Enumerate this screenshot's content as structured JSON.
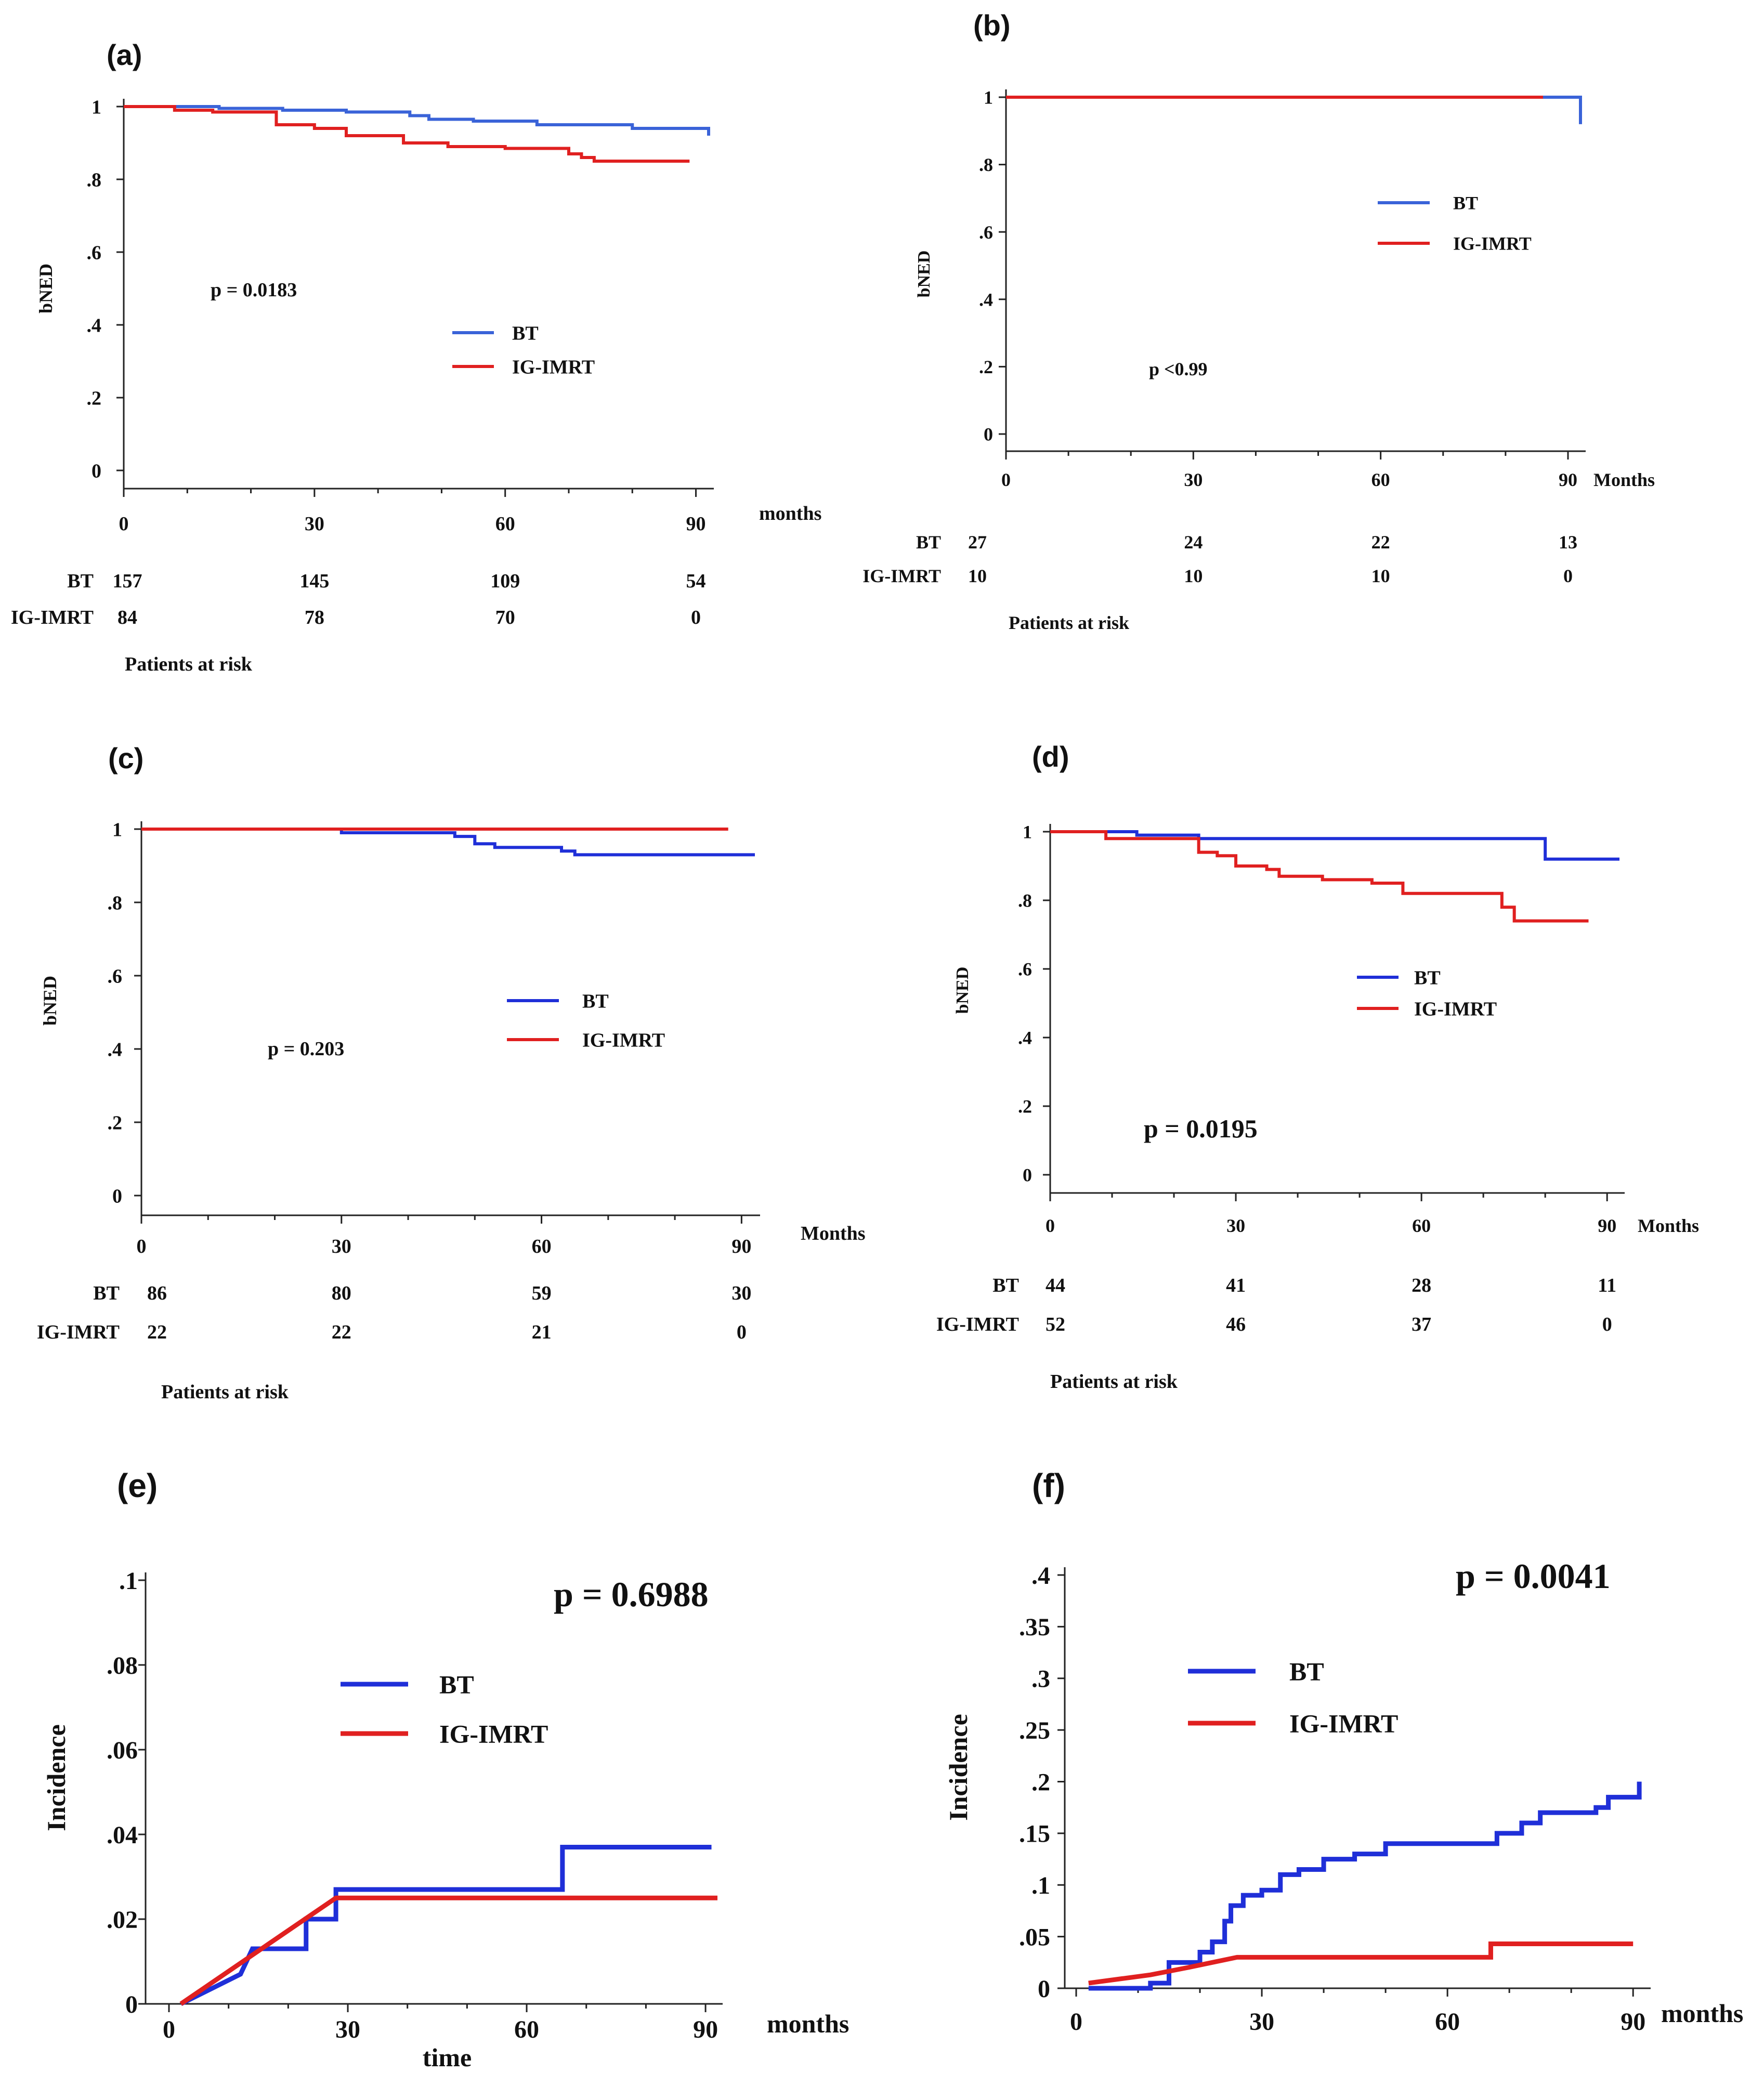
{
  "colors": {
    "bt": "#3a63d8",
    "imrt": "#e02020",
    "bt_dark": "#1f2fd8",
    "axis": "#222222"
  },
  "chart_data": [
    {
      "panel": "(a)",
      "type": "line",
      "ylabel": "bNED",
      "xunit": "months",
      "ylim": [
        0,
        1
      ],
      "xlim": [
        0,
        92
      ],
      "yticks": [
        "0",
        ".2",
        ".4",
        ".6",
        ".8",
        "1"
      ],
      "xticks": [
        "0",
        "30",
        "60",
        "90"
      ],
      "pvalue": "p = 0.0183",
      "legend": [
        "BT",
        "IG-IMRT"
      ],
      "series": [
        {
          "name": "BT",
          "x": [
            0,
            15,
            25,
            35,
            45,
            48,
            55,
            65,
            80,
            91,
            92
          ],
          "y": [
            1,
            0.995,
            0.99,
            0.985,
            0.975,
            0.965,
            0.96,
            0.95,
            0.94,
            0.94,
            0.92
          ]
        },
        {
          "name": "IG-IMRT",
          "x": [
            0,
            8,
            14,
            24,
            30,
            35,
            44,
            51,
            60,
            70,
            72,
            74,
            89
          ],
          "y": [
            1,
            0.99,
            0.985,
            0.95,
            0.94,
            0.92,
            0.9,
            0.89,
            0.885,
            0.87,
            0.86,
            0.85,
            0.85
          ]
        }
      ],
      "at_risk_label": "Patients at risk",
      "at_risk_rows": [
        {
          "label": "BT",
          "values": [
            "157",
            "145",
            "109",
            "54"
          ]
        },
        {
          "label": "IG-IMRT",
          "values": [
            "84",
            "78",
            "70",
            "0"
          ]
        }
      ]
    },
    {
      "panel": "(b)",
      "type": "line",
      "ylabel": "bNED",
      "xunit": "Months",
      "ylim": [
        0,
        1
      ],
      "xlim": [
        0,
        92
      ],
      "yticks": [
        "0",
        ".2",
        ".4",
        ".6",
        ".8",
        "1"
      ],
      "xticks": [
        "0",
        "30",
        "60",
        "90"
      ],
      "pvalue": "p <0.99",
      "legend": [
        "BT",
        "IG-IMRT"
      ],
      "series": [
        {
          "name": "BT",
          "x": [
            0,
            92,
            92
          ],
          "y": [
            1,
            1,
            0.92
          ]
        },
        {
          "name": "IG-IMRT",
          "x": [
            0,
            86
          ],
          "y": [
            1,
            1
          ]
        }
      ],
      "at_risk_label": "Patients at risk",
      "at_risk_rows": [
        {
          "label": "BT",
          "values": [
            "27",
            "24",
            "22",
            "13"
          ]
        },
        {
          "label": "IG-IMRT",
          "values": [
            "10",
            "10",
            "10",
            "0"
          ]
        }
      ]
    },
    {
      "panel": "(c)",
      "type": "line",
      "ylabel": "bNED",
      "xunit": "Months",
      "ylim": [
        0,
        1
      ],
      "xlim": [
        0,
        92
      ],
      "yticks": [
        "0",
        ".2",
        ".4",
        ".6",
        ".8",
        "1"
      ],
      "xticks": [
        "0",
        "30",
        "60",
        "90"
      ],
      "pvalue": "p = 0.203",
      "legend": [
        "BT",
        "IG-IMRT"
      ],
      "series": [
        {
          "name": "BT",
          "x": [
            0,
            30,
            47,
            50,
            53,
            63,
            65,
            92
          ],
          "y": [
            1,
            0.99,
            0.98,
            0.96,
            0.95,
            0.94,
            0.93,
            0.93
          ]
        },
        {
          "name": "IG-IMRT",
          "x": [
            0,
            88
          ],
          "y": [
            1,
            1
          ]
        }
      ],
      "at_risk_label": "Patients at risk",
      "at_risk_rows": [
        {
          "label": "BT",
          "values": [
            "86",
            "80",
            "59",
            "30"
          ]
        },
        {
          "label": "IG-IMRT",
          "values": [
            "22",
            "22",
            "21",
            "0"
          ]
        }
      ]
    },
    {
      "panel": "(d)",
      "type": "line",
      "ylabel": "bNED",
      "xunit": "Months",
      "ylim": [
        0,
        1
      ],
      "xlim": [
        0,
        92
      ],
      "yticks": [
        "0",
        ".2",
        ".4",
        ".6",
        ".8",
        "1"
      ],
      "xticks": [
        "0",
        "30",
        "60",
        "90"
      ],
      "pvalue": "p = 0.0195",
      "legend": [
        "BT",
        "IG-IMRT"
      ],
      "series": [
        {
          "name": "BT",
          "x": [
            0,
            14,
            24,
            80,
            92
          ],
          "y": [
            1,
            0.99,
            0.98,
            0.92,
            0.92
          ]
        },
        {
          "name": "IG-IMRT",
          "x": [
            0,
            9,
            24,
            27,
            30,
            35,
            37,
            44,
            52,
            57,
            73,
            75,
            87
          ],
          "y": [
            1,
            0.98,
            0.94,
            0.93,
            0.9,
            0.89,
            0.87,
            0.86,
            0.85,
            0.82,
            0.78,
            0.74,
            0.74
          ]
        }
      ],
      "at_risk_label": "Patients at risk",
      "at_risk_rows": [
        {
          "label": "BT",
          "values": [
            "44",
            "41",
            "28",
            "11"
          ]
        },
        {
          "label": "IG-IMRT",
          "values": [
            "52",
            "46",
            "37",
            "0"
          ]
        }
      ]
    },
    {
      "panel": "(e)",
      "type": "line",
      "ylabel": "Incidence",
      "xlabel": "time",
      "xunit": "months",
      "ylim": [
        0,
        0.1
      ],
      "xlim": [
        0,
        92
      ],
      "yticks": [
        "0",
        ".02",
        ".04",
        ".06",
        ".08",
        ".1"
      ],
      "xticks": [
        "0",
        "30",
        "60",
        "90"
      ],
      "pvalue": "p = 0.6988",
      "legend": [
        "BT",
        "IG-IMRT"
      ],
      "series": [
        {
          "name": "BT",
          "x": [
            2,
            12,
            14,
            22,
            23,
            26,
            28,
            64,
            66,
            91
          ],
          "y": [
            0,
            0.007,
            0.013,
            0.013,
            0.02,
            0.02,
            0.027,
            0.027,
            0.037,
            0.037
          ]
        },
        {
          "name": "IG-IMRT",
          "x": [
            2,
            28,
            92
          ],
          "y": [
            0,
            0.025,
            0.025
          ]
        }
      ]
    },
    {
      "panel": "(f)",
      "type": "line",
      "ylabel": "Incidence",
      "xunit": "months",
      "ylim": [
        0,
        0.4
      ],
      "xlim": [
        0,
        92
      ],
      "yticks": [
        "0",
        ".05",
        ".1",
        ".15",
        ".2",
        ".25",
        ".3",
        ".35",
        ".4"
      ],
      "xticks": [
        "0",
        "30",
        "60",
        "90"
      ],
      "pvalue": "p = 0.0041",
      "legend": [
        "BT",
        "IG-IMRT"
      ],
      "series": [
        {
          "name": "BT",
          "x": [
            2,
            12,
            15,
            18,
            20,
            22,
            24,
            25,
            27,
            30,
            33,
            36,
            40,
            45,
            50,
            60,
            68,
            72,
            75,
            80,
            84,
            86,
            91,
            91
          ],
          "y": [
            0,
            0.005,
            0.025,
            0.025,
            0.035,
            0.045,
            0.065,
            0.08,
            0.09,
            0.095,
            0.11,
            0.115,
            0.125,
            0.13,
            0.14,
            0.14,
            0.15,
            0.16,
            0.17,
            0.17,
            0.175,
            0.185,
            0.185,
            0.2
          ]
        },
        {
          "name": "IG-IMRT",
          "x": [
            2,
            12,
            18,
            26,
            66,
            67,
            90
          ],
          "y": [
            0.005,
            0.013,
            0.02,
            0.03,
            0.03,
            0.043,
            0.043
          ]
        }
      ]
    }
  ]
}
